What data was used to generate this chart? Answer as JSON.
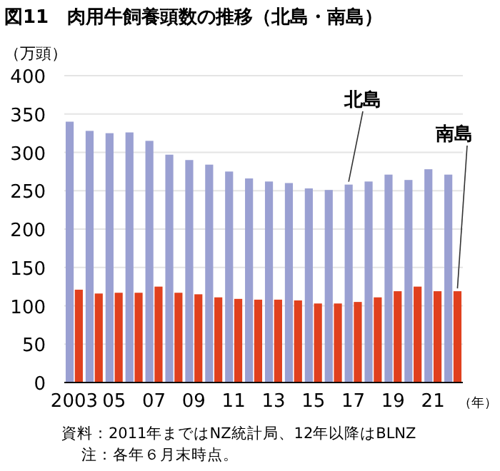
{
  "chart_data": {
    "type": "bar",
    "title": "図11　肉用牛飼養頭数の推移（北島・南島）",
    "ylabel": "（万頭）",
    "xlabel": "（年）",
    "categories": [
      "2003",
      null,
      "05",
      null,
      "07",
      null,
      "09",
      null,
      "11",
      null,
      "13",
      null,
      "15",
      null,
      "17",
      null,
      "19",
      null,
      "21",
      null
    ],
    "series": [
      {
        "name": "北島",
        "color": "#9aa0d2",
        "values": [
          340,
          328,
          325,
          326,
          315,
          297,
          290,
          284,
          275,
          266,
          262,
          260,
          253,
          251,
          258,
          262,
          271,
          264,
          278,
          271
        ]
      },
      {
        "name": "南島",
        "color": "#e0401e",
        "values": [
          121,
          116,
          117,
          117,
          125,
          117,
          115,
          111,
          109,
          108,
          108,
          107,
          103,
          103,
          105,
          111,
          119,
          125,
          119,
          119
        ]
      }
    ],
    "ylim": [
      0,
      400
    ],
    "yticks": [
      0,
      50,
      100,
      150,
      200,
      250,
      300,
      350,
      400
    ],
    "grid": "y",
    "legend": false,
    "annotations": [
      "資料：2011年まではNZ統計局、12年以降はBLNZ",
      "注：各年６月末時点。"
    ]
  }
}
